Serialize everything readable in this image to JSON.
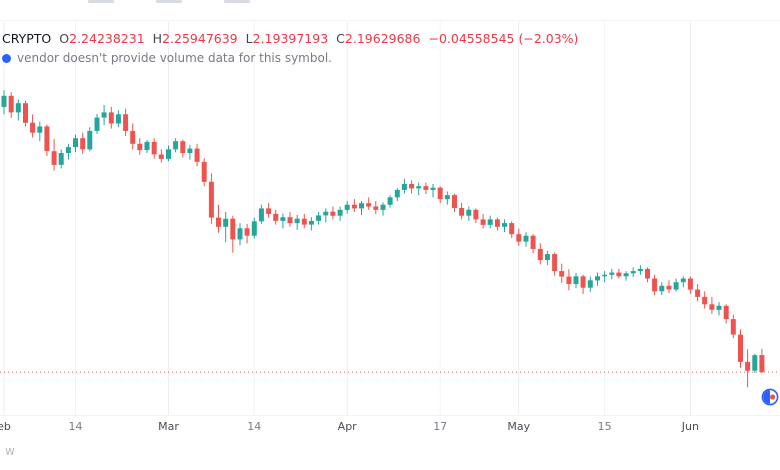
{
  "legend": {
    "symbol": "CRYPTO",
    "ohlc": [
      {
        "label": "O",
        "value": "2.24238231"
      },
      {
        "label": "H",
        "value": "2.25947639"
      },
      {
        "label": "L",
        "value": "2.19397193"
      },
      {
        "label": "C",
        "value": "2.19629686"
      }
    ],
    "change": "−0.04558545 (−2.03%)"
  },
  "info": {
    "message": "vendor doesn't provide volume data for this symbol."
  },
  "watermark": {
    "text": "w"
  },
  "colors": {
    "up": "#26a69a",
    "down": "#ef5350",
    "legend_value": "#f23645",
    "text_muted": "#787b86",
    "text_dark": "#131722",
    "grid_minor": "#f1f3f8",
    "grid_major": "#e9edf3",
    "accent_blue": "#2962ff"
  },
  "chart_data": {
    "type": "candlestick",
    "title": "",
    "xlabel": "",
    "ylabel": "",
    "ylim": [
      2.08,
      3.145
    ],
    "grid": "vertical-faint",
    "price_line": 2.19629686,
    "x_axis": [
      {
        "label": "eb",
        "index": 0,
        "major": true
      },
      {
        "label": "14",
        "index": 10,
        "major": false
      },
      {
        "label": "Mar",
        "index": 23,
        "major": true
      },
      {
        "label": "14",
        "index": 35,
        "major": false
      },
      {
        "label": "Apr",
        "index": 48,
        "major": true
      },
      {
        "label": "17",
        "index": 61,
        "major": false
      },
      {
        "label": "May",
        "index": 72,
        "major": true
      },
      {
        "label": "15",
        "index": 84,
        "major": false
      },
      {
        "label": "Jun",
        "index": 96,
        "major": true
      }
    ],
    "candles": [
      [
        2.915,
        2.96,
        2.895,
        2.945
      ],
      [
        2.945,
        2.955,
        2.885,
        2.9
      ],
      [
        2.9,
        2.935,
        2.878,
        2.925
      ],
      [
        2.925,
        2.932,
        2.862,
        2.872
      ],
      [
        2.872,
        2.895,
        2.832,
        2.845
      ],
      [
        2.845,
        2.875,
        2.822,
        2.862
      ],
      [
        2.862,
        2.867,
        2.782,
        2.795
      ],
      [
        2.795,
        2.828,
        2.742,
        2.758
      ],
      [
        2.758,
        2.8,
        2.748,
        2.79
      ],
      [
        2.79,
        2.815,
        2.772,
        2.806
      ],
      [
        2.806,
        2.84,
        2.792,
        2.83
      ],
      [
        2.83,
        2.845,
        2.788,
        2.8
      ],
      [
        2.8,
        2.86,
        2.795,
        2.85
      ],
      [
        2.85,
        2.896,
        2.842,
        2.886
      ],
      [
        2.886,
        2.92,
        2.866,
        2.9
      ],
      [
        2.9,
        2.915,
        2.856,
        2.87
      ],
      [
        2.87,
        2.906,
        2.86,
        2.895
      ],
      [
        2.895,
        2.91,
        2.836,
        2.85
      ],
      [
        2.85,
        2.87,
        2.8,
        2.815
      ],
      [
        2.815,
        2.83,
        2.785,
        2.798
      ],
      [
        2.798,
        2.825,
        2.79,
        2.82
      ],
      [
        2.82,
        2.83,
        2.775,
        2.786
      ],
      [
        2.786,
        2.8,
        2.764,
        2.774
      ],
      [
        2.774,
        2.81,
        2.768,
        2.8
      ],
      [
        2.8,
        2.83,
        2.792,
        2.822
      ],
      [
        2.822,
        2.826,
        2.778,
        2.79
      ],
      [
        2.79,
        2.812,
        2.772,
        2.802
      ],
      [
        2.802,
        2.815,
        2.754,
        2.766
      ],
      [
        2.766,
        2.776,
        2.7,
        2.712
      ],
      [
        2.712,
        2.735,
        2.598,
        2.615
      ],
      [
        2.615,
        2.65,
        2.574,
        2.59
      ],
      [
        2.59,
        2.63,
        2.548,
        2.612
      ],
      [
        2.612,
        2.62,
        2.52,
        2.556
      ],
      [
        2.556,
        2.6,
        2.54,
        2.586
      ],
      [
        2.586,
        2.598,
        2.545,
        2.566
      ],
      [
        2.566,
        2.615,
        2.558,
        2.605
      ],
      [
        2.605,
        2.65,
        2.598,
        2.64
      ],
      [
        2.64,
        2.654,
        2.614,
        2.625
      ],
      [
        2.625,
        2.636,
        2.596,
        2.606
      ],
      [
        2.606,
        2.626,
        2.586,
        2.616
      ],
      [
        2.616,
        2.63,
        2.59,
        2.6
      ],
      [
        2.6,
        2.622,
        2.582,
        2.612
      ],
      [
        2.612,
        2.625,
        2.586,
        2.596
      ],
      [
        2.596,
        2.616,
        2.58,
        2.606
      ],
      [
        2.606,
        2.63,
        2.596,
        2.621
      ],
      [
        2.621,
        2.64,
        2.602,
        2.631
      ],
      [
        2.631,
        2.645,
        2.61,
        2.62
      ],
      [
        2.62,
        2.645,
        2.606,
        2.636
      ],
      [
        2.636,
        2.66,
        2.626,
        2.65
      ],
      [
        2.65,
        2.665,
        2.63,
        2.64
      ],
      [
        2.64,
        2.66,
        2.622,
        2.654
      ],
      [
        2.654,
        2.67,
        2.636,
        2.645
      ],
      [
        2.645,
        2.66,
        2.625,
        2.636
      ],
      [
        2.636,
        2.656,
        2.62,
        2.65
      ],
      [
        2.65,
        2.676,
        2.642,
        2.67
      ],
      [
        2.67,
        2.695,
        2.66,
        2.69
      ],
      [
        2.69,
        2.72,
        2.68,
        2.706
      ],
      [
        2.706,
        2.716,
        2.68,
        2.694
      ],
      [
        2.694,
        2.71,
        2.676,
        2.7
      ],
      [
        2.7,
        2.71,
        2.679,
        2.69
      ],
      [
        2.69,
        2.706,
        2.67,
        2.696
      ],
      [
        2.696,
        2.7,
        2.654,
        2.665
      ],
      [
        2.665,
        2.686,
        2.65,
        2.676
      ],
      [
        2.676,
        2.68,
        2.63,
        2.641
      ],
      [
        2.641,
        2.655,
        2.61,
        2.62
      ],
      [
        2.62,
        2.645,
        2.606,
        2.636
      ],
      [
        2.636,
        2.64,
        2.6,
        2.61
      ],
      [
        2.61,
        2.625,
        2.585,
        2.595
      ],
      [
        2.595,
        2.62,
        2.586,
        2.61
      ],
      [
        2.61,
        2.615,
        2.58,
        2.59
      ],
      [
        2.59,
        2.61,
        2.576,
        2.6
      ],
      [
        2.6,
        2.605,
        2.56,
        2.57
      ],
      [
        2.57,
        2.585,
        2.538,
        2.55
      ],
      [
        2.55,
        2.575,
        2.536,
        2.566
      ],
      [
        2.566,
        2.57,
        2.518,
        2.53
      ],
      [
        2.53,
        2.545,
        2.488,
        2.5
      ],
      [
        2.5,
        2.525,
        2.486,
        2.516
      ],
      [
        2.516,
        2.52,
        2.458,
        2.47
      ],
      [
        2.47,
        2.49,
        2.438,
        2.455
      ],
      [
        2.455,
        2.475,
        2.418,
        2.435
      ],
      [
        2.435,
        2.465,
        2.424,
        2.456
      ],
      [
        2.456,
        2.46,
        2.408,
        2.425
      ],
      [
        2.425,
        2.455,
        2.414,
        2.445
      ],
      [
        2.445,
        2.466,
        2.43,
        2.456
      ],
      [
        2.456,
        2.47,
        2.44,
        2.46
      ],
      [
        2.46,
        2.476,
        2.448,
        2.466
      ],
      [
        2.466,
        2.476,
        2.45,
        2.456
      ],
      [
        2.456,
        2.47,
        2.444,
        2.464
      ],
      [
        2.464,
        2.48,
        2.454,
        2.47
      ],
      [
        2.47,
        2.486,
        2.46,
        2.476
      ],
      [
        2.476,
        2.48,
        2.44,
        2.45
      ],
      [
        2.45,
        2.46,
        2.404,
        2.415
      ],
      [
        2.415,
        2.44,
        2.405,
        2.43
      ],
      [
        2.43,
        2.445,
        2.41,
        2.42
      ],
      [
        2.42,
        2.45,
        2.414,
        2.44
      ],
      [
        2.44,
        2.456,
        2.426,
        2.45
      ],
      [
        2.45,
        2.455,
        2.408,
        2.42
      ],
      [
        2.42,
        2.435,
        2.388,
        2.4
      ],
      [
        2.4,
        2.415,
        2.368,
        2.38
      ],
      [
        2.38,
        2.4,
        2.354,
        2.365
      ],
      [
        2.365,
        2.386,
        2.35,
        2.376
      ],
      [
        2.376,
        2.38,
        2.328,
        2.34
      ],
      [
        2.34,
        2.352,
        2.288,
        2.298
      ],
      [
        2.298,
        2.312,
        2.208,
        2.224
      ],
      [
        2.224,
        2.258,
        2.155,
        2.2
      ],
      [
        2.2,
        2.246,
        2.194,
        2.242
      ],
      [
        2.24238231,
        2.25947639,
        2.19397193,
        2.19629686
      ]
    ]
  }
}
